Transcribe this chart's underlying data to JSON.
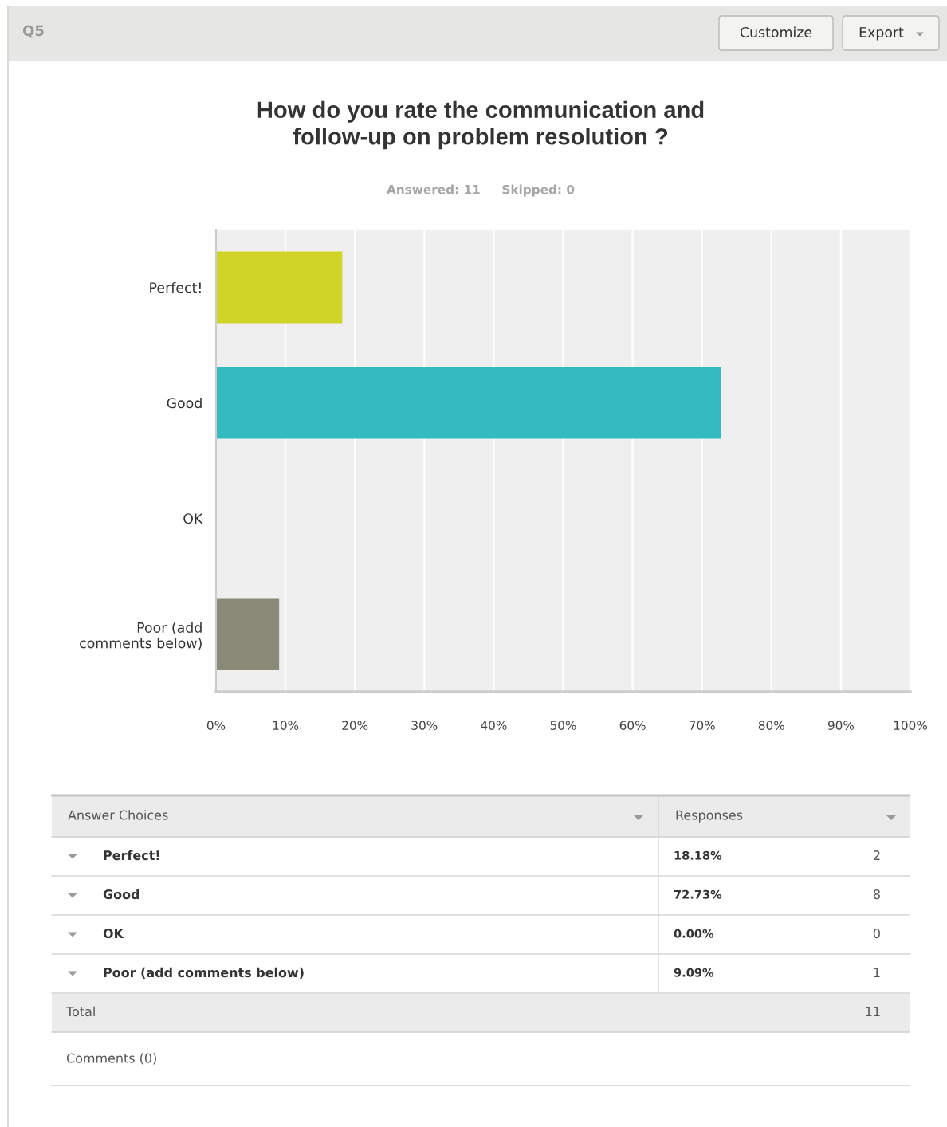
{
  "chart_data": {
    "type": "bar",
    "orientation": "horizontal",
    "title": "How do you rate the communication and\nfollow-up on problem resolution ?",
    "subtitle": "Answered: 11     Skipped: 0",
    "categories": [
      "Perfect!",
      "Good",
      "OK",
      "Poor (add comments below)"
    ],
    "values": [
      18.18,
      72.73,
      0,
      9.09
    ],
    "colors": [
      "#cfd427",
      "#33bbbf",
      null,
      "#8a8a78"
    ],
    "xlim": [
      0,
      100
    ],
    "xticks": [
      {
        "value": 0,
        "label": "0%"
      },
      {
        "value": 10,
        "label": "10%"
      },
      {
        "value": 20,
        "label": "20%"
      },
      {
        "value": 30,
        "label": "30%"
      },
      {
        "value": 40,
        "label": "40%"
      },
      {
        "value": 50,
        "label": "50%"
      },
      {
        "value": 60,
        "label": "60%"
      },
      {
        "value": 70,
        "label": "70%"
      },
      {
        "value": 80,
        "label": "80%"
      },
      {
        "value": 90,
        "label": "90%"
      },
      {
        "value": 100,
        "label": "100%"
      }
    ],
    "grid": "x",
    "annotations": [
      "Q5",
      "Customize",
      "Export",
      "Answer Choices",
      "Responses",
      "18.18%",
      "2",
      "72.73%",
      "8",
      "0.00%",
      "0",
      "9.09%",
      "1",
      "Total",
      "11",
      "Comments (0)"
    ]
  }
}
